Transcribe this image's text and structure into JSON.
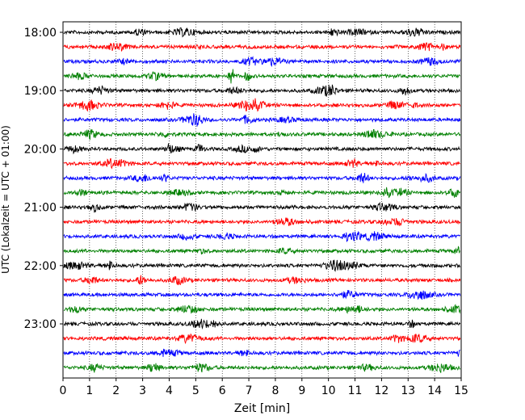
{
  "chart_data": {
    "type": "line",
    "xlabel": "Zeit  [min]",
    "ylabel": "UTC (Lokalzeit = UTC + 01:00)",
    "xlim": [
      0,
      15
    ],
    "x_ticks": [
      "0",
      "1",
      "2",
      "3",
      "4",
      "5",
      "6",
      "7",
      "8",
      "9",
      "10",
      "11",
      "12",
      "13",
      "14",
      "15"
    ],
    "y_tick_labels": [
      "18:00",
      "19:00",
      "20:00",
      "21:00",
      "22:00",
      "23:00"
    ],
    "grid": "vertical-dotted",
    "trace_interval_minutes": 15,
    "trace_start": "18:00",
    "trace_end": "23:45",
    "traces": [
      {
        "start": "18:00",
        "color": "#000000"
      },
      {
        "start": "18:15",
        "color": "#ff0000"
      },
      {
        "start": "18:30",
        "color": "#0000ff"
      },
      {
        "start": "18:45",
        "color": "#008000"
      },
      {
        "start": "19:00",
        "color": "#000000"
      },
      {
        "start": "19:15",
        "color": "#ff0000"
      },
      {
        "start": "19:30",
        "color": "#0000ff"
      },
      {
        "start": "19:45",
        "color": "#008000"
      },
      {
        "start": "20:00",
        "color": "#000000"
      },
      {
        "start": "20:15",
        "color": "#ff0000"
      },
      {
        "start": "20:30",
        "color": "#0000ff"
      },
      {
        "start": "20:45",
        "color": "#008000"
      },
      {
        "start": "21:00",
        "color": "#000000"
      },
      {
        "start": "21:15",
        "color": "#ff0000"
      },
      {
        "start": "21:30",
        "color": "#0000ff"
      },
      {
        "start": "21:45",
        "color": "#008000"
      },
      {
        "start": "22:00",
        "color": "#000000"
      },
      {
        "start": "22:15",
        "color": "#ff0000"
      },
      {
        "start": "22:30",
        "color": "#0000ff"
      },
      {
        "start": "22:45",
        "color": "#008000"
      },
      {
        "start": "23:00",
        "color": "#000000"
      },
      {
        "start": "23:15",
        "color": "#ff0000"
      },
      {
        "start": "23:30",
        "color": "#0000ff"
      },
      {
        "start": "23:45",
        "color": "#008000"
      }
    ]
  }
}
